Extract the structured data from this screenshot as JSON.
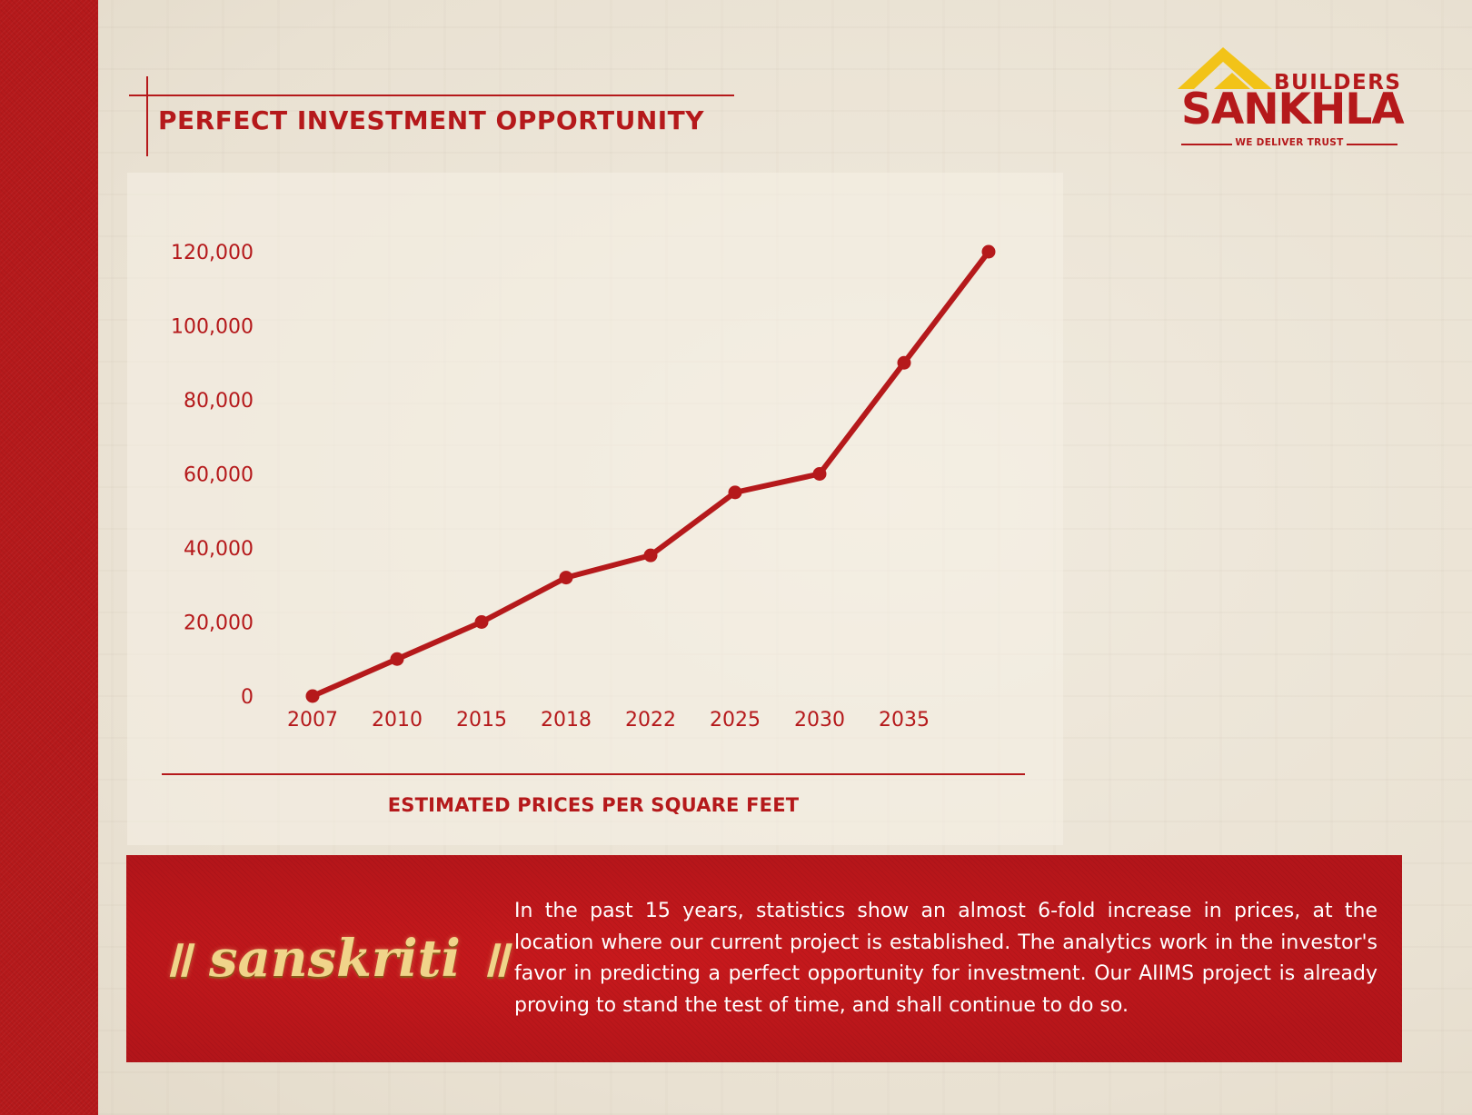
{
  "header": {
    "title": "PERFECT INVESTMENT OPPORTUNITY"
  },
  "logo": {
    "top_word": "BUILDERS",
    "name": "SANKHLA",
    "tagline": "WE DELIVER TRUST"
  },
  "chart_data": {
    "type": "line",
    "title": "",
    "caption": "ESTIMATED PRICES PER SQUARE FEET",
    "x_tick_labels": [
      "2007",
      "2010",
      "2015",
      "2018",
      "2022",
      "2025",
      "2030",
      "2035"
    ],
    "series": [
      {
        "values": [
          0,
          10000,
          20000,
          32000,
          38000,
          55000,
          60000,
          90000,
          120000
        ]
      }
    ],
    "ylim": [
      0,
      120000
    ],
    "y_ticks": [
      0,
      20000,
      40000,
      60000,
      80000,
      100000,
      120000
    ],
    "y_tick_labels": [
      "0",
      "20,000",
      "40,000",
      "60,000",
      "80,000",
      "100,000",
      "120,000"
    ],
    "grid": false,
    "legend": "none",
    "line_color": "#b5191b"
  },
  "banner": {
    "brand": "॥ sanskriti ॥",
    "text": "In the past 15 years, statistics show an almost 6-fold increase in prices, at the location where our current project is established. The analytics work in the investor's favor in predicting a perfect opportunity for investment. Our AIIMS project is already proving to stand the test of time, and shall continue to do so."
  },
  "colors": {
    "accent": "#b5191b",
    "gold": "#f2c318",
    "paper": "#ece4d6"
  }
}
